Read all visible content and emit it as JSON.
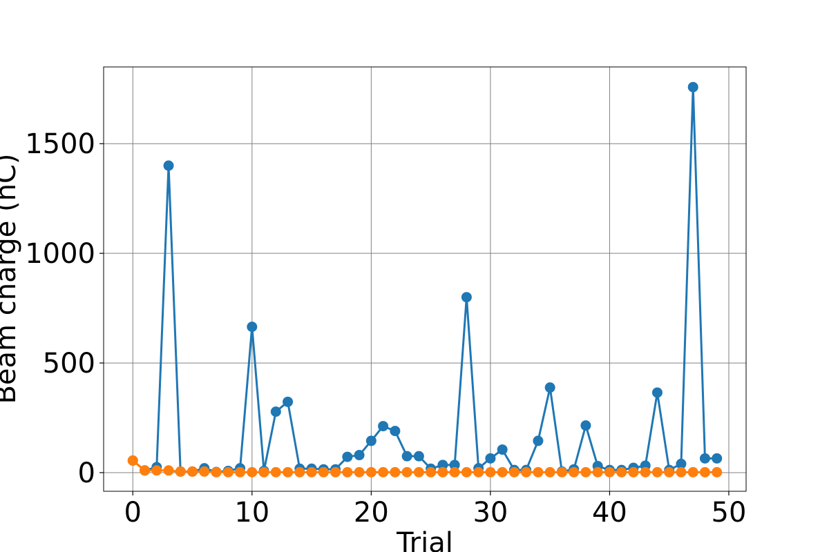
{
  "chart_data": {
    "type": "line",
    "xlabel": "Trial",
    "ylabel": "Beam charge (nC)",
    "xlim": [
      -2.45,
      51.45
    ],
    "ylim": [
      -85,
      1850
    ],
    "x_ticks": [
      0,
      10,
      20,
      30,
      40,
      50
    ],
    "y_ticks": [
      0,
      500,
      1000,
      1500
    ],
    "grid": true,
    "legend": "none",
    "x": [
      0,
      1,
      2,
      3,
      4,
      5,
      6,
      7,
      8,
      9,
      10,
      11,
      12,
      13,
      14,
      15,
      16,
      17,
      18,
      19,
      20,
      21,
      22,
      23,
      24,
      25,
      26,
      27,
      28,
      29,
      30,
      31,
      32,
      33,
      34,
      35,
      36,
      37,
      38,
      39,
      40,
      41,
      42,
      43,
      44,
      45,
      46,
      47,
      48,
      49
    ],
    "series": [
      {
        "color": "#1f77b4",
        "values": [
          55,
          10,
          25,
          1400,
          5,
          5,
          20,
          3,
          8,
          20,
          665,
          8,
          278,
          323,
          18,
          18,
          15,
          15,
          72,
          80,
          145,
          212,
          190,
          75,
          75,
          18,
          35,
          35,
          800,
          20,
          65,
          105,
          12,
          12,
          145,
          388,
          5,
          15,
          215,
          30,
          12,
          12,
          22,
          32,
          365,
          12,
          40,
          1758,
          65,
          65
        ]
      },
      {
        "color": "#ff7f0e",
        "values": [
          55,
          10,
          10,
          10,
          5,
          5,
          5,
          2,
          2,
          2,
          2,
          2,
          2,
          2,
          2,
          2,
          2,
          2,
          2,
          2,
          2,
          2,
          2,
          2,
          2,
          2,
          2,
          2,
          2,
          2,
          2,
          2,
          2,
          2,
          2,
          2,
          2,
          2,
          2,
          2,
          2,
          2,
          2,
          2,
          2,
          2,
          2,
          2,
          2,
          2
        ]
      }
    ]
  }
}
